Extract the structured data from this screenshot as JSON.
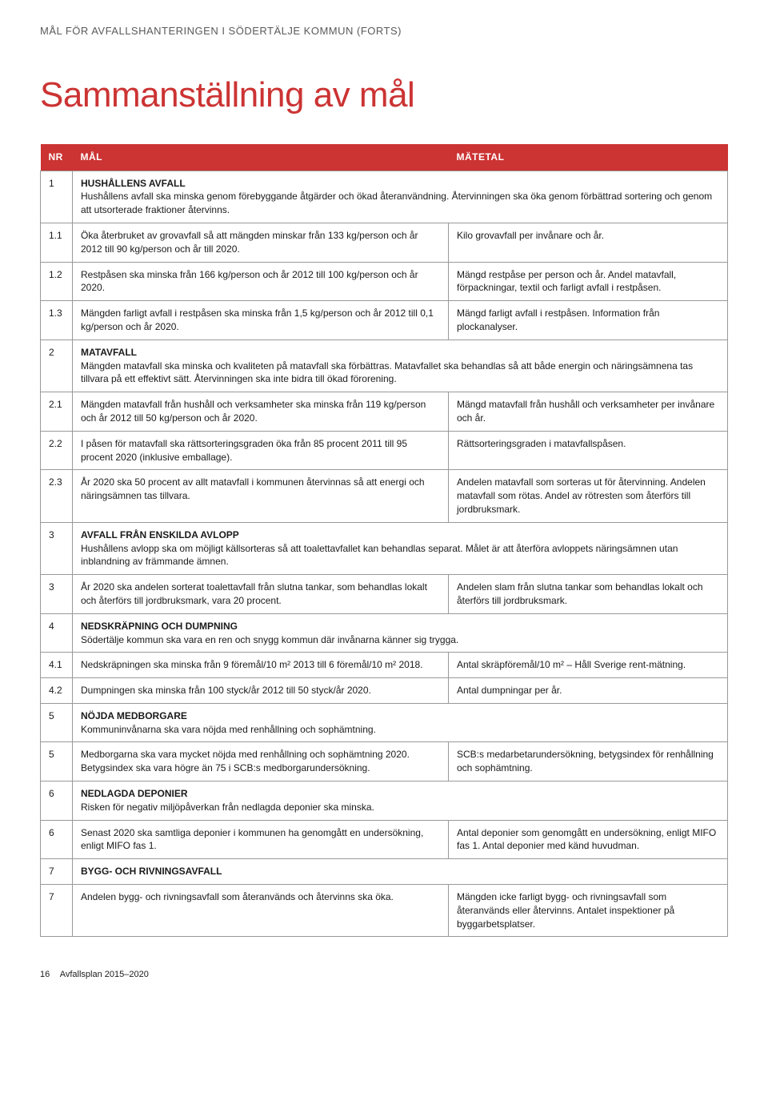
{
  "header": "MÅL FÖR AVFALLSHANTERINGEN I SÖDERTÄLJE KOMMUN (FORTS)",
  "title": "Sammanställning av mål",
  "columns": {
    "nr": "NR",
    "mal": "MÅL",
    "matetal": "MÄTETAL"
  },
  "colors": {
    "accent": "#cc3333",
    "border": "#999999",
    "text": "#1a1a1a",
    "header_text": "#5a5a5a",
    "background": "#ffffff"
  },
  "rows": [
    {
      "nr": "1",
      "span": true,
      "label": "HUSHÅLLENS AVFALL",
      "text": "Hushållens avfall ska minska genom förebyggande åtgärder och ökad återanvändning. Återvinningen ska öka genom förbättrad sortering och genom att utsorterade fraktioner återvinns."
    },
    {
      "nr": "1.1",
      "mal": "Öka återbruket av grovavfall så att mängden minskar från 133 kg/person och år 2012 till 90 kg/person och år till 2020.",
      "matetal": "Kilo grovavfall per invånare och år."
    },
    {
      "nr": "1.2",
      "mal": "Restpåsen ska minska från 166 kg/person och år 2012 till 100 kg/person och år 2020.",
      "matetal": "Mängd restpåse per person och år. Andel matavfall, förpackningar, textil och farligt avfall i restpåsen."
    },
    {
      "nr": "1.3",
      "mal": "Mängden farligt avfall i restpåsen ska minska från 1,5 kg/person och år 2012 till 0,1 kg/person och år 2020.",
      "matetal": "Mängd farligt avfall i restpåsen. Information från plockanalyser."
    },
    {
      "nr": "2",
      "span": true,
      "label": "MATAVFALL",
      "text": "Mängden matavfall ska minska och kvaliteten på matavfall ska förbättras. Matavfallet ska behandlas så att både energin och näringsämnena tas tillvara på ett effektivt sätt. Återvinningen ska inte bidra till ökad förorening."
    },
    {
      "nr": "2.1",
      "mal": "Mängden matavfall från hushåll och verksamheter ska minska från 119 kg/person och år 2012 till 50 kg/person och år 2020.",
      "matetal": "Mängd matavfall från hushåll och verksamheter per invånare och år."
    },
    {
      "nr": "2.2",
      "mal": "I påsen för matavfall ska rättsorteringsgraden öka från 85 procent 2011 till 95 procent 2020 (inklusive emballage).",
      "matetal": "Rättsorteringsgraden i matavfallspåsen."
    },
    {
      "nr": "2.3",
      "mal": "År 2020 ska 50 procent av allt matavfall i kommunen återvinnas så att energi och näringsämnen tas tillvara.",
      "matetal": "Andelen matavfall som sorteras ut för återvinning. Andelen matavfall som rötas. Andel av rötresten som återförs till jordbruksmark."
    },
    {
      "nr": "3",
      "span": true,
      "label": "AVFALL FRÅN ENSKILDA AVLOPP",
      "text": "Hushållens avlopp ska om möjligt källsorteras så att toalettavfallet kan behandlas separat. Målet är att återföra avloppets näringsämnen utan inblandning av främmande ämnen."
    },
    {
      "nr": "3",
      "mal": "År 2020 ska andelen sorterat toalettavfall från slutna tankar, som behandlas lokalt och återförs till jordbruksmark, vara 20 procent.",
      "matetal": "Andelen slam från slutna tankar som behandlas lokalt och återförs till jordbruksmark."
    },
    {
      "nr": "4",
      "span": true,
      "label": "NEDSKRÄPNING OCH DUMPNING",
      "text": "Södertälje kommun ska vara en ren och snygg kommun där invånarna känner sig trygga."
    },
    {
      "nr": "4.1",
      "mal": "Nedskräpningen ska minska från 9 föremål/10 m² 2013 till 6 föremål/10 m² 2018.",
      "matetal": "Antal skräpföremål/10 m² – Håll Sverige rent-mätning."
    },
    {
      "nr": "4.2",
      "mal": "Dumpningen ska minska från 100 styck/år 2012 till 50 styck/år 2020.",
      "matetal": "Antal dumpningar per år."
    },
    {
      "nr": "5",
      "span": true,
      "label": "NÖJDA MEDBORGARE",
      "text": "Kommuninvånarna ska vara nöjda med renhållning och sophämtning."
    },
    {
      "nr": "5",
      "mal": "Medborgarna ska vara mycket nöjda med renhållning och sophämtning 2020. Betygsindex ska vara högre än 75 i SCB:s medborgarundersökning.",
      "matetal": "SCB:s medarbetarundersökning, betygsindex för renhållning och sophämtning."
    },
    {
      "nr": "6",
      "span": true,
      "label": "NEDLAGDA DEPONIER",
      "text": "Risken för negativ miljöpåverkan från nedlagda deponier ska minska."
    },
    {
      "nr": "6",
      "mal": "Senast 2020 ska samtliga deponier i kommunen ha genomgått en undersökning, enligt MIFO fas 1.",
      "matetal": "Antal deponier som genomgått en undersökning, enligt MIFO fas 1. Antal deponier med känd huvudman."
    },
    {
      "nr": "7",
      "span": true,
      "label": "BYGG- OCH RIVNINGSAVFALL",
      "text": ""
    },
    {
      "nr": "7",
      "mal": "Andelen bygg- och rivningsavfall som återanvänds och återvinns ska öka.",
      "matetal": "Mängden icke farligt bygg- och rivningsavfall som återanvänds eller återvinns. Antalet inspektioner på byggarbetsplatser."
    }
  ],
  "footer": {
    "page_number": "16",
    "doc_title": "Avfallsplan 2015–2020"
  }
}
